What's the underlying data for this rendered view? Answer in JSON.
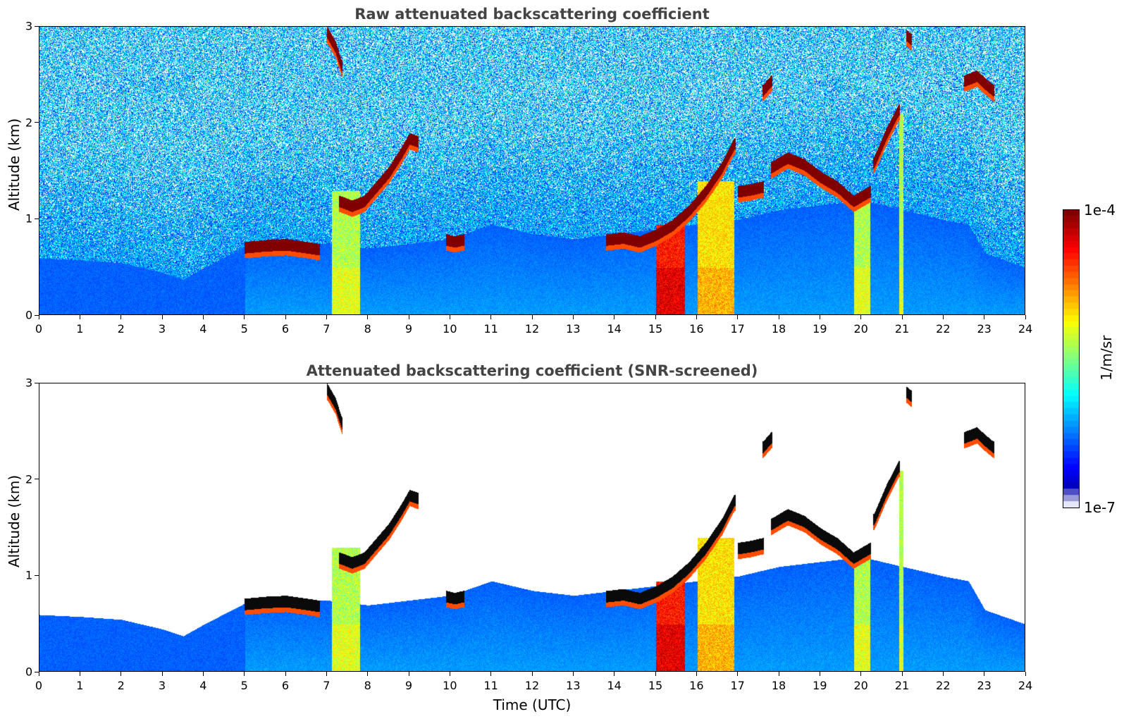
{
  "chart_data": [
    {
      "type": "heatmap",
      "title": "Raw attenuated backscattering coefficient",
      "xlabel": "",
      "ylabel": "Altitude (km)",
      "xlim": [
        0,
        24
      ],
      "ylim": [
        0,
        3
      ],
      "x_ticks": [
        "0",
        "1",
        "2",
        "3",
        "4",
        "5",
        "6",
        "7",
        "8",
        "9",
        "10",
        "11",
        "12",
        "13",
        "14",
        "15",
        "16",
        "17",
        "18",
        "19",
        "20",
        "21",
        "22",
        "23",
        "24"
      ],
      "y_ticks": [
        "0",
        "1",
        "2",
        "3"
      ],
      "screened": false
    },
    {
      "type": "heatmap",
      "title": "Attenuated backscattering coefficient (SNR-screened)",
      "xlabel": "Time (UTC)",
      "ylabel": "Altitude (km)",
      "xlim": [
        0,
        24
      ],
      "ylim": [
        0,
        3
      ],
      "x_ticks": [
        "0",
        "1",
        "2",
        "3",
        "4",
        "5",
        "6",
        "7",
        "8",
        "9",
        "10",
        "11",
        "12",
        "13",
        "14",
        "15",
        "16",
        "17",
        "18",
        "19",
        "20",
        "21",
        "22",
        "23",
        "24"
      ],
      "y_ticks": [
        "0",
        "1",
        "2",
        "3"
      ],
      "screened": true
    }
  ],
  "colorbar": {
    "label": "1/m/sr",
    "min_label": "1e-7",
    "max_label": "1e-4",
    "scale": "log",
    "colormap": "jet"
  },
  "cloud_layers": [
    {
      "t": [
        5.0,
        5.5,
        6.0,
        6.5,
        6.8
      ],
      "h": [
        0.72,
        0.74,
        0.75,
        0.72,
        0.7
      ]
    },
    {
      "t": [
        7.3,
        7.6,
        7.9,
        8.2,
        8.5,
        8.8,
        9.0,
        9.2
      ],
      "h": [
        1.2,
        1.15,
        1.2,
        1.35,
        1.5,
        1.7,
        1.85,
        1.82
      ]
    },
    {
      "t": [
        9.9,
        10.1,
        10.3
      ],
      "h": [
        0.8,
        0.78,
        0.8
      ]
    },
    {
      "t": [
        13.8,
        14.2,
        14.6,
        15.0,
        15.4,
        15.8,
        16.2,
        16.6,
        16.9
      ],
      "h": [
        0.8,
        0.82,
        0.78,
        0.85,
        0.95,
        1.1,
        1.3,
        1.55,
        1.8
      ]
    },
    {
      "t": [
        17.0,
        17.3,
        17.6
      ],
      "h": [
        1.3,
        1.32,
        1.35
      ]
    },
    {
      "t": [
        17.8,
        18.2,
        18.6,
        19.0,
        19.4,
        19.8,
        20.2
      ],
      "h": [
        1.55,
        1.65,
        1.58,
        1.45,
        1.35,
        1.2,
        1.3
      ]
    },
    {
      "t": [
        20.3,
        20.6,
        20.9
      ],
      "h": [
        1.6,
        1.9,
        2.15
      ]
    },
    {
      "t": [
        22.5,
        22.8,
        23.0,
        23.2
      ],
      "h": [
        2.45,
        2.5,
        2.42,
        2.35
      ]
    },
    {
      "t": [
        7.0,
        7.2,
        7.35
      ],
      "h": [
        2.95,
        2.8,
        2.6
      ]
    },
    {
      "t": [
        17.6,
        17.8
      ],
      "h": [
        2.35,
        2.45
      ]
    },
    {
      "t": [
        21.1,
        21.2
      ],
      "h": [
        2.92,
        2.88
      ]
    }
  ],
  "aerosol_top_km": [
    [
      0,
      0.6
    ],
    [
      1,
      0.58
    ],
    [
      2,
      0.55
    ],
    [
      3,
      0.45
    ],
    [
      3.5,
      0.38
    ],
    [
      4,
      0.5
    ],
    [
      5,
      0.72
    ],
    [
      7,
      0.75
    ],
    [
      8,
      0.7
    ],
    [
      9,
      0.75
    ],
    [
      10,
      0.8
    ],
    [
      11,
      0.95
    ],
    [
      12,
      0.85
    ],
    [
      13,
      0.8
    ],
    [
      14,
      0.85
    ],
    [
      15,
      0.9
    ],
    [
      17,
      1.0
    ],
    [
      18,
      1.1
    ],
    [
      20,
      1.2
    ],
    [
      21,
      1.1
    ],
    [
      22,
      1.0
    ],
    [
      22.6,
      0.95
    ],
    [
      23,
      0.65
    ],
    [
      24,
      0.5
    ]
  ],
  "convective_columns": [
    {
      "t": [
        7.1,
        7.8
      ],
      "top": 1.3,
      "level": 0.55
    },
    {
      "t": [
        15.0,
        15.7
      ],
      "top": 0.95,
      "level": 0.85
    },
    {
      "t": [
        16.0,
        16.9
      ],
      "top": 1.4,
      "level": 0.65
    },
    {
      "t": [
        19.8,
        20.2
      ],
      "top": 1.2,
      "level": 0.55
    },
    {
      "t": [
        20.9,
        21.0
      ],
      "top": 2.1,
      "level": 0.55
    }
  ]
}
